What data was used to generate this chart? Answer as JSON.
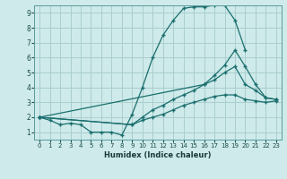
{
  "xlabel": "Humidex (Indice chaleur)",
  "bg_color": "#ceeaea",
  "grid_color": "#aacece",
  "line_color": "#1a6e6e",
  "xlim": [
    -0.5,
    23.5
  ],
  "ylim": [
    0.5,
    9.5
  ],
  "xticks": [
    0,
    1,
    2,
    3,
    4,
    5,
    6,
    7,
    8,
    9,
    10,
    11,
    12,
    13,
    14,
    15,
    16,
    17,
    18,
    19,
    20,
    21,
    22,
    23
  ],
  "yticks": [
    1,
    2,
    3,
    4,
    5,
    6,
    7,
    8,
    9
  ],
  "line1_x": [
    0,
    1,
    2,
    3,
    4,
    5,
    6,
    7,
    8,
    9,
    10,
    11,
    12,
    13,
    14,
    15,
    16,
    17,
    18,
    19,
    20,
    21,
    22,
    23
  ],
  "line1_y": [
    2.0,
    1.8,
    1.5,
    1.6,
    1.5,
    1.0,
    1.0,
    1.0,
    0.8,
    2.2,
    4.0,
    6.0,
    7.5,
    8.5,
    9.3,
    9.4,
    9.4,
    9.5,
    9.5,
    8.5,
    6.5,
    null,
    null,
    null
  ],
  "line2_x": [
    0,
    16,
    17,
    18,
    19,
    20,
    21,
    22,
    23
  ],
  "line2_y": [
    2.0,
    4.2,
    4.5,
    5.0,
    5.4,
    4.2,
    3.8,
    3.3,
    3.2
  ],
  "line3_x": [
    0,
    9,
    10,
    11,
    12,
    13,
    14,
    15,
    16,
    17,
    18,
    19,
    20,
    21,
    22,
    23
  ],
  "line3_y": [
    2.0,
    1.5,
    2.0,
    2.5,
    2.8,
    3.2,
    3.5,
    3.8,
    4.2,
    4.8,
    5.5,
    6.5,
    5.4,
    4.2,
    3.3,
    3.2
  ],
  "line4_x": [
    0,
    9,
    10,
    11,
    12,
    13,
    14,
    15,
    16,
    17,
    18,
    19,
    20,
    21,
    22,
    23
  ],
  "line4_y": [
    2.0,
    1.5,
    1.8,
    2.0,
    2.2,
    2.5,
    2.8,
    3.0,
    3.2,
    3.4,
    3.5,
    3.5,
    3.2,
    3.1,
    3.0,
    3.1
  ]
}
